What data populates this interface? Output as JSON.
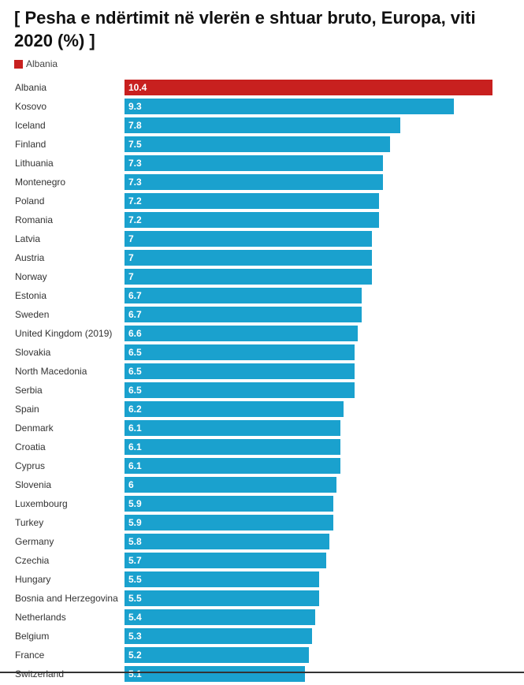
{
  "chart_data": {
    "type": "bar",
    "orientation": "horizontal",
    "title": "[ Pesha e ndërtimit në vlerën e shtuar bruto, Europa, viti 2020 (%) ]",
    "legend": [
      {
        "name": "Albania",
        "color": "#c8201f"
      }
    ],
    "colors": {
      "highlight": "#c8201f",
      "default": "#1aa1ce"
    },
    "xlim": [
      0,
      10.4
    ],
    "categories": [
      "Albania",
      "Kosovo",
      "Iceland",
      "Finland",
      "Lithuania",
      "Montenegro",
      "Poland",
      "Romania",
      "Latvia",
      "Austria",
      "Norway",
      "Estonia",
      "Sweden",
      "United Kingdom (2019)",
      "Slovakia",
      "North Macedonia",
      "Serbia",
      "Spain",
      "Denmark",
      "Croatia",
      "Cyprus",
      "Slovenia",
      "Luxembourg",
      "Turkey",
      "Germany",
      "Czechia",
      "Hungary",
      "Bosnia and Herzegovina",
      "Netherlands",
      "Belgium",
      "France",
      "Switzerland"
    ],
    "values": [
      10.4,
      9.3,
      7.8,
      7.5,
      7.3,
      7.3,
      7.2,
      7.2,
      7,
      7,
      7,
      6.7,
      6.7,
      6.6,
      6.5,
      6.5,
      6.5,
      6.2,
      6.1,
      6.1,
      6.1,
      6,
      5.9,
      5.9,
      5.8,
      5.7,
      5.5,
      5.5,
      5.4,
      5.3,
      5.2,
      5.1
    ],
    "highlight": "Albania"
  }
}
